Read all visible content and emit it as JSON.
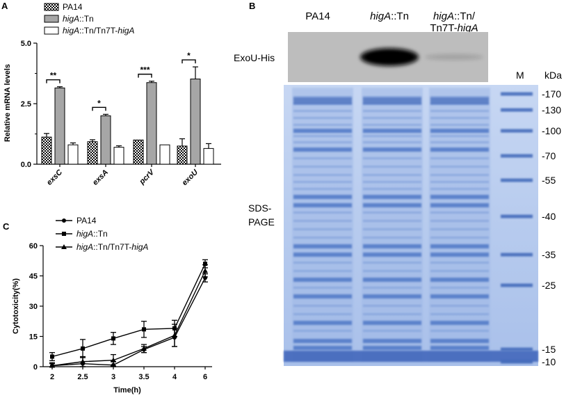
{
  "panels": {
    "a": {
      "letter": "A"
    },
    "b": {
      "letter": "B"
    },
    "c": {
      "letter": "C"
    }
  },
  "colors": {
    "bar_pa14": "#000000",
    "bar_higA": "#a6a6a6",
    "bar_comp": "#ffffff",
    "western_bg": "#bdbdbd",
    "western_band": "#0a0a0a",
    "gel_bg": "#b9cdef",
    "gel_band": "#5f86cf",
    "gel_band_dark": "#2f57b2"
  },
  "chart_data": [
    {
      "panel": "A",
      "type": "bar",
      "ylabel": "Relative mRNA levels",
      "ylim": [
        0,
        5.0
      ],
      "yticks": [
        "0.0",
        "2.5",
        "5.0"
      ],
      "categories": [
        "exsC",
        "exsA",
        "pcrV",
        "exoU"
      ],
      "legend": [
        {
          "label_plain": "PA14",
          "label_italic": "",
          "label_tail": ""
        },
        {
          "label_plain": "",
          "label_italic": "higA",
          "label_tail": "::Tn"
        },
        {
          "label_plain": "",
          "label_italic": "higA",
          "label_tail": "::Tn/Tn7T-",
          "label_italic2": "higA"
        }
      ],
      "series": [
        {
          "name": "PA14",
          "values": [
            1.12,
            0.93,
            1.0,
            0.75
          ],
          "errors": [
            0.15,
            0.08,
            0.0,
            0.3
          ]
        },
        {
          "name": "higA::Tn",
          "values": [
            3.15,
            2.0,
            3.37,
            3.52
          ],
          "errors": [
            0.05,
            0.06,
            0.06,
            0.5
          ]
        },
        {
          "name": "higA::Tn/Tn7T-higA",
          "values": [
            0.8,
            0.7,
            0.8,
            0.65
          ],
          "errors": [
            0.08,
            0.06,
            0.0,
            0.2
          ]
        }
      ],
      "significance": [
        "**",
        "*",
        "***",
        "*"
      ]
    },
    {
      "panel": "C",
      "type": "line",
      "xlabel": "Time(h)",
      "ylabel": "Cytotoxicity(%)",
      "ylim": [
        0,
        60
      ],
      "yticks": [
        "0",
        "15",
        "30",
        "45",
        "60"
      ],
      "x": [
        "2",
        "2.5",
        "3",
        "3.5",
        "4",
        "6"
      ],
      "legend": [
        {
          "marker": "circle",
          "label_plain": "PA14",
          "label_italic": "",
          "label_tail": ""
        },
        {
          "marker": "square",
          "label_plain": "",
          "label_italic": "higA",
          "label_tail": "::Tn"
        },
        {
          "marker": "triangle",
          "label_plain": "",
          "label_italic": "higA",
          "label_tail": "::Tn/Tn7T-",
          "label_italic2": "higA"
        }
      ],
      "series": [
        {
          "name": "PA14",
          "marker": "circle",
          "values": [
            0.5,
            1.5,
            0.8,
            8.5,
            14.5,
            44
          ],
          "errors": [
            1.5,
            3.0,
            1.8,
            1.5,
            4.5,
            2.0
          ]
        },
        {
          "name": "higA::Tn",
          "marker": "square",
          "values": [
            5,
            9,
            14,
            18.5,
            19,
            51
          ],
          "errors": [
            2.0,
            4.5,
            3.0,
            4.0,
            4.0,
            2.0
          ]
        },
        {
          "name": "higA::Tn/Tn7T-higA",
          "marker": "triangle",
          "values": [
            0.5,
            2.5,
            3.2,
            9.0,
            15.5,
            47.5
          ],
          "errors": [
            1.0,
            2.5,
            2.8,
            2.0,
            5.5,
            3.0
          ]
        }
      ]
    }
  ],
  "blot": {
    "lanes": [
      {
        "line1_italic": "",
        "line1_tail": "PA14",
        "line2_plain": "",
        "line2_italic": ""
      },
      {
        "line1_italic": "higA",
        "line1_tail": "::Tn",
        "line2_plain": "",
        "line2_italic": ""
      },
      {
        "line1_italic": "higA",
        "line1_tail": "::Tn/",
        "line2_plain": "Tn7T-",
        "line2_italic": "higA"
      }
    ],
    "western_label": "ExoU-His",
    "western_intensity": [
      0.0,
      1.0,
      0.12
    ],
    "gel_label_line1": "SDS-",
    "gel_label_line2": "PAGE",
    "marker_lane": "M",
    "kda_label": "kDa",
    "markers_kda": [
      "-170",
      "-130",
      "-100",
      "-70",
      "-55",
      "-40",
      "-35",
      "-25",
      "-15",
      "-10"
    ]
  }
}
